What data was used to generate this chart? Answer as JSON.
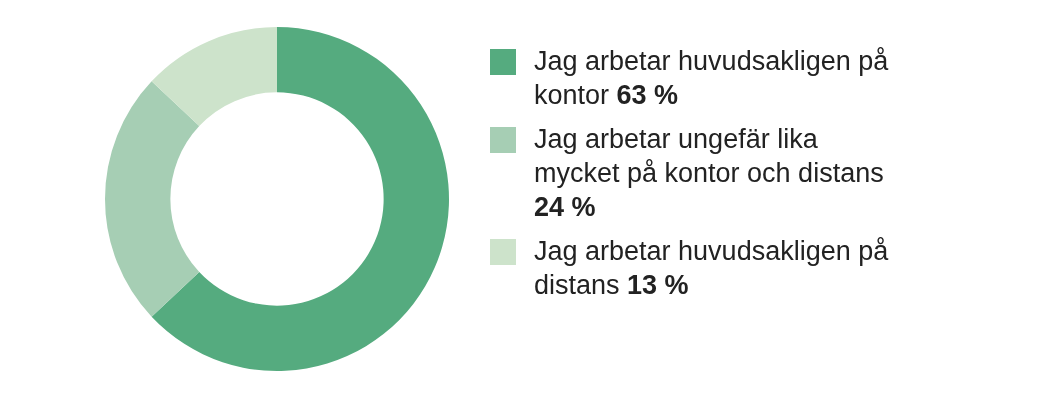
{
  "chart_data": {
    "type": "donut",
    "categories": [
      "Jag arbetar huvudsakligen på kontor",
      "Jag arbetar ungefär lika mycket på kontor och distans",
      "Jag arbetar huvudsakligen på distans"
    ],
    "values": [
      63,
      24,
      13
    ],
    "value_labels": [
      "63 %",
      "24 %",
      "13 %"
    ],
    "colors": [
      "#55ab7f",
      "#a6ceb4",
      "#cde3cb"
    ],
    "legend": "right"
  }
}
